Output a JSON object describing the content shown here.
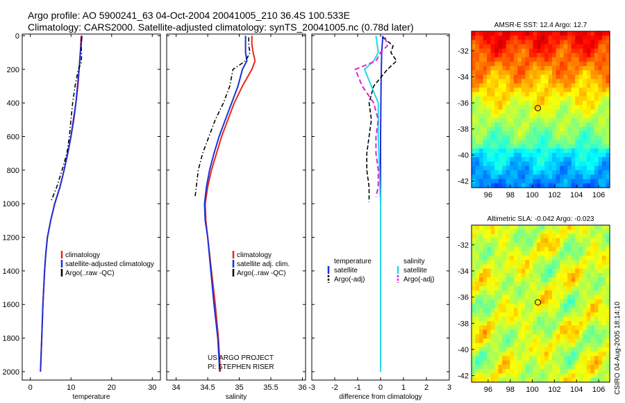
{
  "header": {
    "line1": "Argo profile: AO 5900241_63 04-Oct-2004 20041005_210 36.4S 100.533E",
    "line2": "Climatology: CARS2000. Satellite-adjusted climatology: synTS_20041005.nc (0.78d later)"
  },
  "footer": {
    "credit": "CSIRO 04-Aug-2005 18:14:10",
    "project_line1": "US ARGO PROJECT",
    "project_line2": "PI: STEPHEN RISER"
  },
  "colors": {
    "climatology": "#e8251f",
    "satellite": "#1c2fd8",
    "argo": "#000000",
    "salinity_satellite": "#22d8e8",
    "salinity_argo": "#e020d8"
  },
  "chart_data": [
    {
      "type": "line",
      "id": "temperature",
      "xlabel": "temperature",
      "ylabel": "",
      "xlim": [
        -2,
        32
      ],
      "ylim": [
        2050,
        -10
      ],
      "xticks": [
        0,
        10,
        20,
        30
      ],
      "xtick_labels": [
        "0",
        "10",
        "20",
        "30"
      ],
      "yticks": [
        0,
        200,
        400,
        600,
        800,
        1000,
        1200,
        1400,
        1600,
        1800,
        2000
      ],
      "ytick_labels": [
        "0",
        "200",
        "400",
        "600",
        "800",
        "1000",
        "1200",
        "1400",
        "1600",
        "1800",
        "2000"
      ],
      "legend": [
        "climatology",
        "satellite-adjusted climatology",
        "Argo(..raw -QC)"
      ],
      "legend_position": "lower-right",
      "series": [
        {
          "name": "climatology",
          "depth": [
            0,
            50,
            100,
            200,
            300,
            400,
            500,
            600,
            700,
            800,
            900,
            1000,
            1100,
            1200,
            1300,
            1400,
            1600,
            1800,
            2000
          ],
          "values": [
            12.5,
            12.4,
            12.3,
            12.0,
            11.7,
            11.2,
            10.7,
            10.0,
            9.2,
            8.3,
            7.3,
            6.0,
            5.0,
            4.2,
            3.8,
            3.5,
            3.1,
            2.8,
            2.5
          ]
        },
        {
          "name": "satellite-adjusted climatology",
          "depth": [
            0,
            50,
            100,
            200,
            300,
            400,
            500,
            600,
            700,
            800,
            900,
            1000,
            1100,
            1200,
            1300,
            1400,
            1600,
            1800,
            2000
          ],
          "values": [
            12.7,
            12.5,
            12.3,
            12.0,
            11.6,
            11.2,
            10.6,
            10.0,
            9.2,
            8.3,
            7.3,
            6.0,
            5.0,
            4.2,
            3.8,
            3.5,
            3.1,
            2.8,
            2.5
          ]
        },
        {
          "name": "Argo(..raw -QC)",
          "depth": [
            10,
            60,
            120,
            160,
            200,
            300,
            400,
            500,
            600,
            700,
            800,
            900,
            990
          ],
          "values": [
            12.6,
            12.5,
            12.6,
            12.5,
            11.8,
            11.0,
            10.4,
            10.0,
            9.6,
            9.0,
            7.8,
            6.5,
            5.0
          ]
        }
      ]
    },
    {
      "type": "line",
      "id": "salinity",
      "xlabel": "salinity",
      "ylabel": "",
      "xlim": [
        33.85,
        36.05
      ],
      "ylim": [
        2050,
        -10
      ],
      "xticks": [
        34,
        34.5,
        35,
        35.5,
        36
      ],
      "xtick_labels": [
        "34",
        "34.5",
        "35",
        "35.5",
        "36"
      ],
      "yticks": [
        0,
        200,
        400,
        600,
        800,
        1000,
        1200,
        1400,
        1600,
        1800,
        2000
      ],
      "ytick_labels": [],
      "legend": [
        "climatology",
        "satellite adj. clim.",
        "Argo(..raw -QC)"
      ],
      "legend_position": "lower-right",
      "series": [
        {
          "name": "climatology",
          "depth": [
            0,
            50,
            100,
            150,
            200,
            300,
            400,
            500,
            600,
            700,
            800,
            900,
            1000,
            1100,
            1200,
            1400,
            1600,
            1800,
            2000
          ],
          "values": [
            35.2,
            35.2,
            35.22,
            35.25,
            35.2,
            35.05,
            34.92,
            34.82,
            34.72,
            34.64,
            34.56,
            34.5,
            34.46,
            34.47,
            34.5,
            34.56,
            34.62,
            34.67,
            34.7
          ]
        },
        {
          "name": "satellite adj. clim.",
          "depth": [
            0,
            50,
            100,
            150,
            200,
            300,
            400,
            500,
            600,
            700,
            800,
            900,
            1000,
            1100,
            1200,
            1400,
            1600,
            1800,
            2000
          ],
          "values": [
            35.1,
            35.1,
            35.1,
            35.12,
            35.05,
            34.98,
            34.88,
            34.78,
            34.68,
            34.6,
            34.53,
            34.48,
            34.45,
            34.46,
            34.5,
            34.55,
            34.6,
            34.66,
            34.69
          ]
        },
        {
          "name": "Argo(..raw -QC)",
          "depth": [
            10,
            60,
            100,
            150,
            200,
            300,
            400,
            500,
            600,
            700,
            800,
            900,
            960
          ],
          "values": [
            35.15,
            35.15,
            35.17,
            35.1,
            34.9,
            34.85,
            34.75,
            34.62,
            34.52,
            34.42,
            34.35,
            34.32,
            34.3
          ]
        }
      ]
    },
    {
      "type": "line",
      "id": "difference",
      "xlabel": "difference from climatology",
      "ylabel": "",
      "xlim": [
        -3,
        3
      ],
      "ylim": [
        2050,
        -10
      ],
      "xticks": [
        -3,
        -2,
        -1,
        0,
        1,
        2,
        3
      ],
      "xtick_labels": [
        "-3",
        "-2",
        "-1",
        "0",
        "1",
        "2",
        "3"
      ],
      "yticks": [
        0,
        200,
        400,
        600,
        800,
        1000,
        1200,
        1400,
        1600,
        1800,
        2000
      ],
      "ytick_labels": [],
      "legend_temperature": [
        "temperature",
        "satellite",
        "Argo(-adj)"
      ],
      "legend_salinity": [
        "salinity",
        "satellite",
        "Argo(-adj)"
      ],
      "legend_position": "lower-center",
      "series": [
        {
          "name": "temperature satellite",
          "depth": [
            0,
            100,
            300,
            600,
            1000,
            2000
          ],
          "values": [
            0.1,
            0.05,
            0.02,
            0.0,
            0.0,
            0.0
          ]
        },
        {
          "name": "temperature Argo(-adj)",
          "depth": [
            10,
            60,
            100,
            150,
            200,
            300,
            400,
            500,
            600,
            700,
            800,
            900,
            990
          ],
          "values": [
            0.1,
            0.55,
            0.45,
            0.7,
            0.3,
            -0.3,
            -0.5,
            -0.4,
            -0.5,
            -0.6,
            -0.6,
            -0.5,
            -0.5
          ]
        },
        {
          "name": "salinity satellite",
          "depth": [
            0,
            100,
            150,
            200,
            300,
            400,
            600,
            1000,
            2000
          ],
          "values": [
            -0.2,
            -0.1,
            -0.3,
            -0.7,
            -0.4,
            -0.1,
            -0.1,
            0.0,
            0.0
          ]
        },
        {
          "name": "salinity Argo(-adj)",
          "depth": [
            10,
            60,
            100,
            150,
            200,
            300,
            400,
            500,
            600,
            700,
            800,
            900,
            960
          ],
          "values": [
            0.2,
            0.3,
            0.0,
            -0.2,
            -1.1,
            -0.8,
            -0.3,
            -0.1,
            -0.2,
            -0.2,
            -0.1,
            -0.1,
            -0.2
          ]
        }
      ]
    },
    {
      "type": "heatmap",
      "id": "sst_map",
      "title": "AMSR-E SST: 12.4 Argo: 12.7",
      "xlim": [
        94.5,
        107
      ],
      "ylim": [
        -42.5,
        -30.5
      ],
      "xticks": [
        96,
        98,
        100,
        102,
        104,
        106
      ],
      "xtick_labels": [
        "96",
        "98",
        "100",
        "102",
        "104",
        "106"
      ],
      "yticks": [
        -32,
        -34,
        -36,
        -38,
        -40,
        -42
      ],
      "ytick_labels": [
        "-32",
        "-34",
        "-36",
        "-38",
        "-40",
        "-42"
      ],
      "marker": {
        "lon": 100.5,
        "lat": -36.4
      },
      "colormap": "jet"
    },
    {
      "type": "heatmap",
      "id": "sla_map",
      "title": "Altimetric SLA: -0.042 Argo: -0.023",
      "xlim": [
        94.5,
        107
      ],
      "ylim": [
        -42.5,
        -30.5
      ],
      "xticks": [
        96,
        98,
        100,
        102,
        104,
        106
      ],
      "xtick_labels": [
        "96",
        "98",
        "100",
        "102",
        "104",
        "106"
      ],
      "yticks": [
        -32,
        -34,
        -36,
        -38,
        -40,
        -42
      ],
      "ytick_labels": [
        "-32",
        "-34",
        "-36",
        "-38",
        "-40",
        "-42"
      ],
      "marker": {
        "lon": 100.5,
        "lat": -36.4
      },
      "colormap": "jet"
    }
  ]
}
